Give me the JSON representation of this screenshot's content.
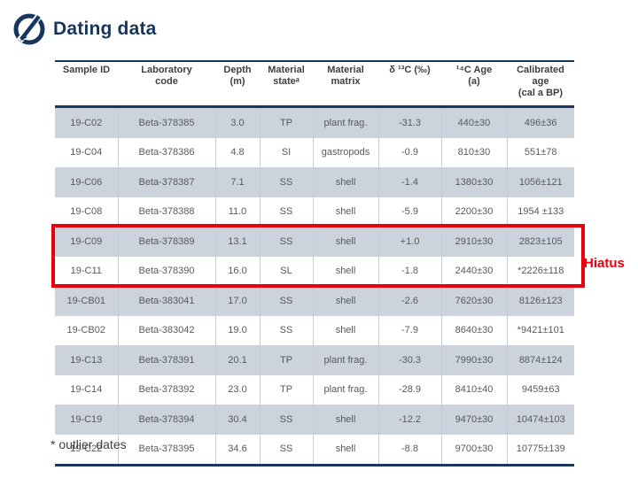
{
  "colors": {
    "navy": "#17365d",
    "red": "#e8000d",
    "row_shade": "#ccd3dd",
    "body_text": "#595959"
  },
  "header": {
    "title": "Dating data",
    "logo_icon": "circle-slash-logo"
  },
  "table": {
    "columns": [
      "Sample ID",
      "Laboratory\ncode",
      "Depth\n(m)",
      "Material\nstateᵃ",
      "Material\nmatrix",
      "δ ¹³C (‰)",
      "¹⁴C Age\n(a)",
      "Calibrated\nage\n(cal a BP)"
    ],
    "rows": [
      [
        "19-C02",
        "Beta-378385",
        "3.0",
        "TP",
        "plant frag.",
        "-31.3",
        "440±30",
        "496±36"
      ],
      [
        "19-C04",
        "Beta-378386",
        "4.8",
        "SI",
        "gastropods",
        "-0.9",
        "810±30",
        "551±78"
      ],
      [
        "19-C06",
        "Beta-378387",
        "7.1",
        "SS",
        "shell",
        "-1.4",
        "1380±30",
        "1056±121"
      ],
      [
        "19-C08",
        "Beta-378388",
        "11.0",
        "SS",
        "shell",
        "-5.9",
        "2200±30",
        "1954 ±133"
      ],
      [
        "19-C09",
        "Beta-378389",
        "13.1",
        "SS",
        "shell",
        "+1.0",
        "2910±30",
        "2823±105"
      ],
      [
        "19-C11",
        "Beta-378390",
        "16.0",
        "SL",
        "shell",
        "-1.8",
        "2440±30",
        "*2226±118"
      ],
      [
        "19-CB01",
        "Beta-383041",
        "17.0",
        "SS",
        "shell",
        "-2.6",
        "7620±30",
        "8126±123"
      ],
      [
        "19-CB02",
        "Beta-383042",
        "19.0",
        "SS",
        "shell",
        "-7.9",
        "8640±30",
        "*9421±101"
      ],
      [
        "19-C13",
        "Beta-378391",
        "20.1",
        "TP",
        "plant frag.",
        "-30.3",
        "7990±30",
        "8874±124"
      ],
      [
        "19-C14",
        "Beta-378392",
        "23.0",
        "TP",
        "plant frag.",
        "-28.9",
        "8410±40",
        "9459±63"
      ],
      [
        "19-C19",
        "Beta-378394",
        "30.4",
        "SS",
        "shell",
        "-12.2",
        "9470±30",
        "10474±103"
      ],
      [
        "19-C22",
        "Beta-378395",
        "34.6",
        "SS",
        "shell",
        "-8.8",
        "9700±30",
        "10775±139"
      ]
    ],
    "highlight_row_indices": [
      4,
      5
    ],
    "highlight_label": "Hiatus"
  },
  "footnote": "* outlier dates"
}
